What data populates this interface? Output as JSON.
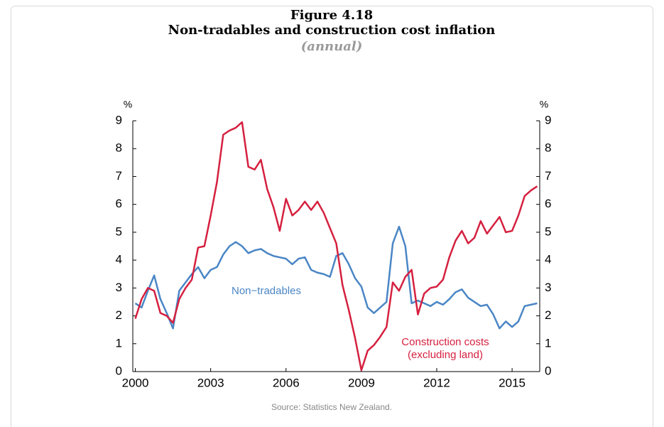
{
  "chart_data": {
    "type": "line",
    "title": "Figure 4.18",
    "subtitle": "Non-tradables and construction cost inflation",
    "note": "(annual)",
    "y_label": "%",
    "y2_label": "%",
    "source": "Source: Statistics New Zealand.",
    "annotations": [
      "Non−tradables",
      "Construction costs",
      "(excluding land)"
    ],
    "x": [
      2000,
      2000.25,
      2000.5,
      2000.75,
      2001,
      2001.25,
      2001.5,
      2001.75,
      2002,
      2002.25,
      2002.5,
      2002.75,
      2003,
      2003.25,
      2003.5,
      2003.75,
      2004,
      2004.25,
      2004.5,
      2004.75,
      2005,
      2005.25,
      2005.5,
      2005.75,
      2006,
      2006.25,
      2006.5,
      2006.75,
      2007,
      2007.25,
      2007.5,
      2007.75,
      2008,
      2008.25,
      2008.5,
      2008.75,
      2009,
      2009.25,
      2009.5,
      2009.75,
      2010,
      2010.25,
      2010.5,
      2010.75,
      2011,
      2011.25,
      2011.5,
      2011.75,
      2012,
      2012.25,
      2012.5,
      2012.75,
      2013,
      2013.25,
      2013.5,
      2013.75,
      2014,
      2014.25,
      2014.5,
      2014.75,
      2015,
      2015.25,
      2015.5,
      2015.75,
      2016
    ],
    "series": [
      {
        "name": "Non−tradables",
        "color": "#4a86c5",
        "values": [
          2.45,
          2.3,
          2.9,
          3.45,
          2.6,
          2.1,
          1.55,
          2.9,
          3.2,
          3.5,
          3.75,
          3.35,
          3.65,
          3.75,
          4.2,
          4.5,
          4.65,
          4.5,
          4.25,
          4.35,
          4.4,
          4.25,
          4.15,
          4.1,
          4.05,
          3.85,
          4.05,
          4.1,
          3.65,
          3.55,
          3.5,
          3.4,
          4.15,
          4.25,
          3.85,
          3.35,
          3.05,
          2.3,
          2.1,
          2.3,
          2.5,
          4.6,
          5.2,
          4.5,
          2.45,
          2.55,
          2.45,
          2.35,
          2.5,
          2.4,
          2.6,
          2.85,
          2.95,
          2.65,
          2.5,
          2.35,
          2.4,
          2.05,
          1.55,
          1.8,
          1.6,
          1.8,
          2.35,
          2.4,
          2.45
        ]
      },
      {
        "name": "Construction costs (excluding land)",
        "color": "#d5203f",
        "values": [
          1.9,
          2.6,
          3.0,
          2.9,
          2.1,
          2.0,
          1.75,
          2.6,
          3.0,
          3.3,
          4.45,
          4.5,
          5.6,
          6.8,
          8.5,
          8.65,
          8.75,
          8.95,
          7.35,
          7.25,
          7.6,
          6.55,
          5.9,
          5.05,
          6.2,
          5.6,
          5.8,
          6.1,
          5.8,
          6.1,
          5.7,
          5.15,
          4.6,
          3.1,
          2.2,
          1.2,
          0.05,
          0.75,
          0.95,
          1.25,
          1.6,
          3.2,
          2.9,
          3.4,
          3.65,
          2.05,
          2.8,
          3.0,
          3.05,
          3.3,
          4.1,
          4.7,
          5.05,
          4.6,
          4.8,
          5.4,
          4.95,
          5.25,
          5.55,
          5.0,
          5.05,
          5.6,
          6.3,
          6.5,
          6.65
        ]
      }
    ],
    "xlim": [
      1999.9,
      2016.1
    ],
    "xticks": [
      2000,
      2003,
      2006,
      2009,
      2012,
      2015
    ],
    "ylim": [
      0,
      9
    ],
    "yticks": [
      0,
      1,
      2,
      3,
      4,
      5,
      6,
      7,
      8,
      9
    ],
    "y2lim": [
      0,
      9
    ],
    "y2ticks": [
      0,
      1,
      2,
      3,
      4,
      5,
      6,
      7,
      8,
      9
    ]
  }
}
